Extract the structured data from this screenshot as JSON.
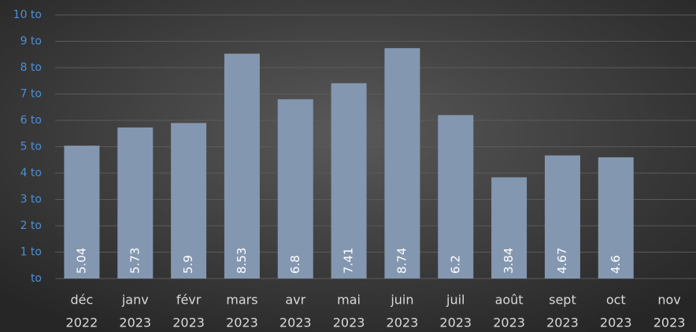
{
  "chart_data": {
    "type": "bar",
    "categories": [
      [
        "déc",
        "2022"
      ],
      [
        "janv",
        "2023"
      ],
      [
        "févr",
        "2023"
      ],
      [
        "mars",
        "2023"
      ],
      [
        "avr",
        "2023"
      ],
      [
        "mai",
        "2023"
      ],
      [
        "juin",
        "2023"
      ],
      [
        "juil",
        "2023"
      ],
      [
        "août",
        "2023"
      ],
      [
        "sept",
        "2023"
      ],
      [
        "oct",
        "2023"
      ],
      [
        "nov",
        "2023"
      ]
    ],
    "values": [
      5.04,
      5.73,
      5.9,
      8.53,
      6.8,
      7.41,
      8.74,
      6.2,
      3.84,
      4.67,
      4.6,
      null
    ],
    "color": "#8497b0",
    "ylim": [
      0,
      10
    ],
    "yticks": [
      {
        "value": 0,
        "label": "to"
      },
      {
        "value": 1,
        "label": "1 to"
      },
      {
        "value": 2,
        "label": "2 to"
      },
      {
        "value": 3,
        "label": "3 to"
      },
      {
        "value": 4,
        "label": "4 to"
      },
      {
        "value": 5,
        "label": "5 to"
      },
      {
        "value": 6,
        "label": "6 to"
      },
      {
        "value": 7,
        "label": "7 to"
      },
      {
        "value": 8,
        "label": "8 to"
      },
      {
        "value": 9,
        "label": "9 to"
      },
      {
        "value": 10,
        "label": "10 to"
      }
    ],
    "grid": true
  }
}
